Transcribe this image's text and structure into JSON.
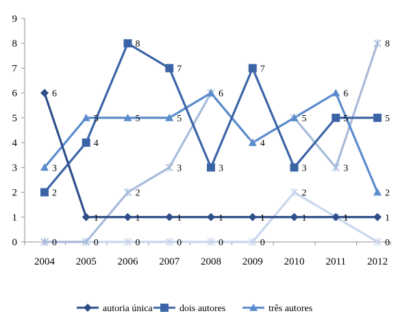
{
  "chart_data": {
    "type": "line",
    "title": "",
    "xlabel": "",
    "ylabel": "",
    "categories": [
      "2004",
      "2005",
      "2006",
      "2007",
      "2008",
      "2009",
      "2010",
      "2011",
      "2012"
    ],
    "ylim": [
      0,
      9
    ],
    "yticks": [
      0,
      1,
      2,
      3,
      4,
      5,
      6,
      7,
      8,
      9
    ],
    "grid": false,
    "legend_position": "bottom",
    "series": [
      {
        "name": "autoria única",
        "marker": "diamond",
        "color": "#2E4E8A",
        "values": [
          6,
          1,
          1,
          1,
          1,
          1,
          1,
          1,
          1
        ],
        "labels": [
          "6",
          "1",
          "1",
          "1",
          "1",
          "1",
          "1",
          "1",
          "1"
        ],
        "in_legend": true
      },
      {
        "name": "dois autores",
        "marker": "square",
        "color": "#3B64A6",
        "values": [
          2,
          4,
          8,
          7,
          3,
          7,
          3,
          5,
          5
        ],
        "labels": [
          "2",
          "4",
          "8",
          "7",
          "3",
          "7",
          "3",
          "5",
          "5"
        ],
        "in_legend": true
      },
      {
        "name": "três autores",
        "marker": "triangle",
        "color": "#5A8BCC",
        "values": [
          3,
          5,
          5,
          5,
          6,
          4,
          5,
          6,
          2
        ],
        "labels": [
          "3",
          "5",
          "5",
          "5",
          "6",
          "4",
          "5",
          "6",
          "2"
        ],
        "in_legend": true
      },
      {
        "name": "",
        "marker": "star",
        "color": "#A9BBDB",
        "values": [
          0,
          0,
          2,
          3,
          6,
          4,
          5,
          3,
          8
        ],
        "labels": [
          "",
          "",
          "2",
          "3",
          "",
          "",
          "",
          "3",
          "8"
        ],
        "in_legend": false
      },
      {
        "name": "",
        "marker": "star",
        "color": "#C9D6EC",
        "values": [
          0,
          0,
          0,
          0,
          0,
          0,
          2,
          1,
          0
        ],
        "labels": [
          "0",
          "0",
          "0",
          "0",
          "0",
          "0",
          "2",
          "1",
          "0"
        ],
        "in_legend": false
      }
    ]
  }
}
